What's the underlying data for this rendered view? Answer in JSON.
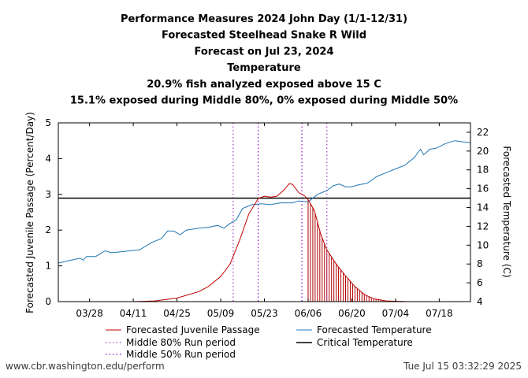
{
  "chart_data": {
    "type": "line",
    "title_lines": [
      "Performance Measures 2024 John Day (1/1-12/31)",
      "Forecasted Steelhead Snake R Wild",
      "Forecast on Jul 23, 2024",
      "Temperature",
      "20.9% fish analyzed exposed above 15 C",
      "15.1% exposed during Middle 80%, 0% exposed during Middle 50%"
    ],
    "ylabel_left": "Forecasted Juvenile Passage (Percent/Day)",
    "ylabel_right": "Forecasted Temperature (C)",
    "x_range": [
      "2024-03-18",
      "2024-07-28"
    ],
    "ylim_left": [
      0,
      5
    ],
    "ylim_right": [
      4,
      23
    ],
    "x_ticks": [
      "03/28",
      "04/11",
      "04/25",
      "05/09",
      "05/23",
      "06/06",
      "06/20",
      "07/04",
      "07/18"
    ],
    "y_ticks_left": [
      "0",
      "1",
      "2",
      "3",
      "4",
      "5"
    ],
    "y_ticks_right": [
      "4",
      "6",
      "8",
      "10",
      "12",
      "14",
      "16",
      "18",
      "20",
      "22"
    ],
    "legend_position": "bottom",
    "legend": {
      "passage": "Forecasted Juvenile Passage",
      "middle80": "Middle 80% Run period",
      "middle50": "Middle 50% Run period",
      "temperature": "Forecasted Temperature",
      "critical": "Critical Temperature"
    },
    "colors": {
      "passage": "#c00000",
      "temperature": "#1f77b4",
      "middle80": "#a040c0",
      "middle50": "#9000c0",
      "critical": "#000000",
      "exposed_fill": "#b00000"
    },
    "critical_temperature": 15,
    "middle80_period": [
      "2024-05-13",
      "2024-06-12"
    ],
    "middle50_period": [
      "2024-05-21",
      "2024-06-04"
    ],
    "exposed_period": [
      "2024-06-06",
      "2024-07-01"
    ],
    "series": [
      {
        "name": "Forecasted Juvenile Passage",
        "axis": "left",
        "points": [
          [
            "2024-04-11",
            0.0
          ],
          [
            "2024-04-18",
            0.02
          ],
          [
            "2024-04-25",
            0.1
          ],
          [
            "2024-05-02",
            0.28
          ],
          [
            "2024-05-05",
            0.42
          ],
          [
            "2024-05-09",
            0.7
          ],
          [
            "2024-05-12",
            1.05
          ],
          [
            "2024-05-15",
            1.7
          ],
          [
            "2024-05-18",
            2.45
          ],
          [
            "2024-05-21",
            2.88
          ],
          [
            "2024-05-23",
            2.95
          ],
          [
            "2024-05-25",
            2.92
          ],
          [
            "2024-05-27",
            2.95
          ],
          [
            "2024-05-29",
            3.1
          ],
          [
            "2024-05-31",
            3.3
          ],
          [
            "2024-06-01",
            3.28
          ],
          [
            "2024-06-03",
            3.05
          ],
          [
            "2024-06-05",
            2.95
          ],
          [
            "2024-06-06",
            2.85
          ],
          [
            "2024-06-08",
            2.55
          ],
          [
            "2024-06-10",
            1.9
          ],
          [
            "2024-06-12",
            1.45
          ],
          [
            "2024-06-15",
            1.05
          ],
          [
            "2024-06-18",
            0.72
          ],
          [
            "2024-06-21",
            0.42
          ],
          [
            "2024-06-24",
            0.2
          ],
          [
            "2024-06-27",
            0.08
          ],
          [
            "2024-07-01",
            0.02
          ],
          [
            "2024-07-08",
            0.0
          ],
          [
            "2024-07-28",
            0.0
          ]
        ]
      },
      {
        "name": "Forecasted Temperature",
        "axis": "right",
        "points": [
          [
            "2024-03-18",
            8.1
          ],
          [
            "2024-03-22",
            8.4
          ],
          [
            "2024-03-25",
            8.6
          ],
          [
            "2024-03-26",
            8.4
          ],
          [
            "2024-03-27",
            8.8
          ],
          [
            "2024-03-30",
            8.8
          ],
          [
            "2024-04-02",
            9.4
          ],
          [
            "2024-04-04",
            9.2
          ],
          [
            "2024-04-07",
            9.3
          ],
          [
            "2024-04-10",
            9.4
          ],
          [
            "2024-04-13",
            9.5
          ],
          [
            "2024-04-17",
            10.3
          ],
          [
            "2024-04-20",
            10.7
          ],
          [
            "2024-04-22",
            11.5
          ],
          [
            "2024-04-24",
            11.5
          ],
          [
            "2024-04-26",
            11.1
          ],
          [
            "2024-04-28",
            11.6
          ],
          [
            "2024-05-02",
            11.8
          ],
          [
            "2024-05-05",
            11.9
          ],
          [
            "2024-05-08",
            12.1
          ],
          [
            "2024-05-10",
            11.8
          ],
          [
            "2024-05-12",
            12.3
          ],
          [
            "2024-05-14",
            12.7
          ],
          [
            "2024-05-16",
            13.9
          ],
          [
            "2024-05-19",
            14.3
          ],
          [
            "2024-05-22",
            14.4
          ],
          [
            "2024-05-25",
            14.3
          ],
          [
            "2024-05-28",
            14.5
          ],
          [
            "2024-06-01",
            14.5
          ],
          [
            "2024-06-03",
            14.7
          ],
          [
            "2024-06-06",
            14.6
          ],
          [
            "2024-06-09",
            15.4
          ],
          [
            "2024-06-12",
            15.8
          ],
          [
            "2024-06-14",
            16.3
          ],
          [
            "2024-06-16",
            16.5
          ],
          [
            "2024-06-18",
            16.2
          ],
          [
            "2024-06-20",
            16.2
          ],
          [
            "2024-06-22",
            16.4
          ],
          [
            "2024-06-25",
            16.6
          ],
          [
            "2024-06-28",
            17.3
          ],
          [
            "2024-07-01",
            17.7
          ],
          [
            "2024-07-04",
            18.1
          ],
          [
            "2024-07-07",
            18.5
          ],
          [
            "2024-07-10",
            19.3
          ],
          [
            "2024-07-12",
            20.2
          ],
          [
            "2024-07-13",
            19.6
          ],
          [
            "2024-07-15",
            20.2
          ],
          [
            "2024-07-17",
            20.3
          ],
          [
            "2024-07-20",
            20.8
          ],
          [
            "2024-07-23",
            21.1
          ],
          [
            "2024-07-25",
            21.0
          ],
          [
            "2024-07-28",
            20.9
          ]
        ]
      }
    ]
  },
  "footer": {
    "source": "www.cbr.washington.edu/perform",
    "timestamp": "Tue Jul 15 03:32:29 2025"
  }
}
